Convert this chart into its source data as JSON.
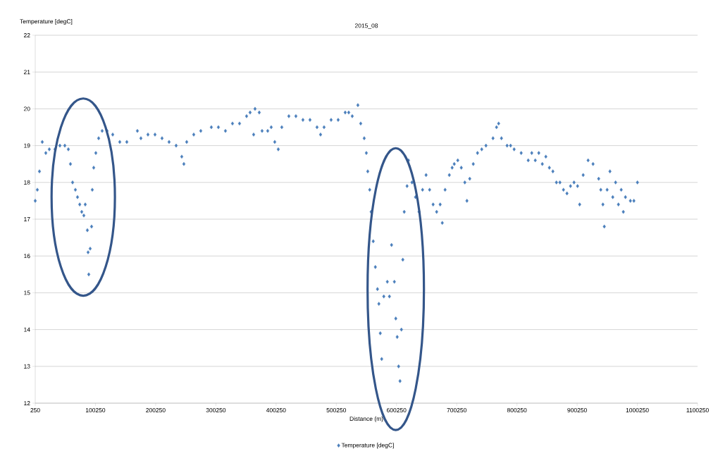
{
  "chart_data": {
    "type": "scatter",
    "title": "2015_08",
    "xlabel": "Distance (m)",
    "ylabel": "Temperature [degC]",
    "xlim": [
      250,
      1100250
    ],
    "xticks": [
      250,
      100250,
      200250,
      300250,
      400250,
      500250,
      600250,
      700250,
      800250,
      900250,
      1000250,
      1100250
    ],
    "ylim": [
      12,
      22
    ],
    "yticks": [
      12,
      13,
      14,
      15,
      16,
      17,
      18,
      19,
      20,
      21,
      22
    ],
    "grid": "y",
    "legend": "bottom",
    "marker": "diamond",
    "x": [
      250,
      3760,
      7270,
      11950,
      17800,
      23650,
      33010,
      41200,
      49390,
      55240,
      58750,
      62260,
      66940,
      70450,
      74160,
      77470,
      80980,
      83320,
      86830,
      88000,
      89170,
      91510,
      93850,
      95020,
      97360,
      100870,
      105550,
      111400,
      119590,
      128950,
      140650,
      152350,
      169900,
      175750,
      187450,
      199150,
      210850,
      222550,
      234250,
      243610,
      247120,
      251800,
      263500,
      275200,
      292750,
      304450,
      316150,
      327850,
      339550,
      351250,
      357100,
      362950,
      365290,
      372310,
      376990,
      386350,
      392200,
      398050,
      403900,
      409750,
      421450,
      433150,
      444850,
      456550,
      468250,
      474100,
      479950,
      491650,
      503350,
      515050,
      520900,
      526750,
      536110,
      540790,
      546640,
      550150,
      552490,
      555760,
      558100,
      561610,
      565120,
      568630,
      570970,
      573310,
      575650,
      579160,
      585010,
      588520,
      592030,
      596710,
      599050,
      601390,
      603730,
      606070,
      608410,
      610750,
      613090,
      617770,
      620110,
      625960,
      631810,
      637660,
      643510,
      649360,
      655210,
      661060,
      666910,
      672760,
      676270,
      680950,
      687970,
      692650,
      696160,
      702010,
      707860,
      713710,
      717220,
      721900,
      727750,
      734770,
      741790,
      748810,
      760510,
      766360,
      769870,
      774550,
      783910,
      789760,
      795610,
      807310,
      819010,
      824860,
      830710,
      836560,
      842410,
      848260,
      854110,
      859960,
      865810,
      871660,
      877510,
      883360,
      889210,
      895060,
      900910,
      904420,
      910270,
      918460,
      926650,
      936010,
      939520,
      943030,
      945370,
      950050,
      954730,
      959410,
      964090,
      968770,
      973450,
      976960,
      980470,
      988660,
      994510,
      1000360
    ],
    "series": [
      {
        "name": "Temperature [degC]",
        "color": "#4a7ebb",
        "values": [
          17.5,
          17.8,
          18.3,
          19.1,
          18.8,
          18.9,
          18.9,
          19.0,
          19.0,
          18.9,
          18.5,
          18.0,
          17.8,
          17.6,
          17.4,
          17.2,
          17.1,
          17.4,
          16.7,
          16.1,
          15.5,
          16.2,
          16.8,
          17.8,
          18.4,
          18.8,
          19.2,
          19.4,
          19.4,
          19.3,
          19.1,
          19.1,
          19.4,
          19.2,
          19.3,
          19.3,
          19.2,
          19.1,
          19.0,
          18.7,
          18.5,
          19.1,
          19.3,
          19.4,
          19.5,
          19.5,
          19.4,
          19.6,
          19.6,
          19.8,
          19.9,
          19.3,
          20.0,
          19.9,
          19.4,
          19.4,
          19.5,
          19.1,
          18.9,
          19.5,
          19.8,
          19.8,
          19.7,
          19.7,
          19.5,
          19.3,
          19.5,
          19.7,
          19.7,
          19.9,
          19.9,
          19.8,
          20.1,
          19.6,
          19.2,
          18.8,
          18.3,
          17.8,
          17.2,
          16.4,
          15.7,
          15.1,
          14.7,
          13.9,
          13.2,
          14.9,
          15.3,
          14.9,
          16.3,
          15.3,
          14.3,
          13.8,
          13.0,
          12.6,
          14.0,
          15.9,
          17.2,
          17.9,
          18.6,
          18.0,
          17.6,
          17.2,
          17.8,
          18.2,
          17.8,
          17.4,
          17.2,
          17.4,
          16.9,
          17.8,
          18.2,
          18.4,
          18.5,
          18.6,
          18.4,
          18.0,
          17.5,
          18.1,
          18.5,
          18.8,
          18.9,
          19.0,
          19.2,
          19.5,
          19.6,
          19.2,
          19.0,
          19.0,
          18.9,
          18.8,
          18.6,
          18.8,
          18.6,
          18.8,
          18.5,
          18.7,
          18.4,
          18.3,
          18.0,
          18.0,
          17.8,
          17.7,
          17.9,
          18.0,
          17.9,
          17.4,
          18.2,
          18.6,
          18.5,
          18.1,
          17.8,
          17.4,
          16.8,
          17.8,
          18.3,
          17.6,
          18.0,
          17.4,
          17.8,
          17.2,
          17.6,
          17.5,
          17.5,
          18.0
        ]
      }
    ]
  }
}
